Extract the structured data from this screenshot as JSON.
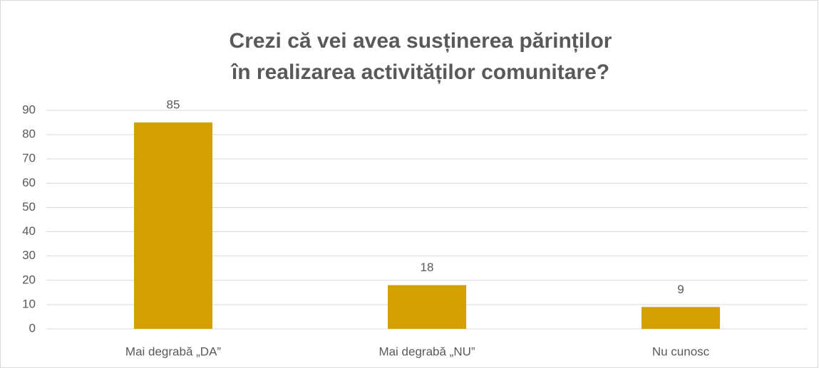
{
  "chart_data": {
    "type": "bar",
    "title": [
      "Crezi că vei avea susținerea părinților",
      "în realizarea activităților comunitare?"
    ],
    "categories": [
      "Mai degrabă „DA”",
      "Mai degrabă „NU”",
      "Nu cunosc"
    ],
    "values": [
      85,
      18,
      9
    ],
    "color": "#d4a000",
    "ylim": [
      0,
      90
    ],
    "yticks": [
      0,
      10,
      20,
      30,
      40,
      50,
      60,
      70,
      80,
      90
    ],
    "grid": true
  }
}
